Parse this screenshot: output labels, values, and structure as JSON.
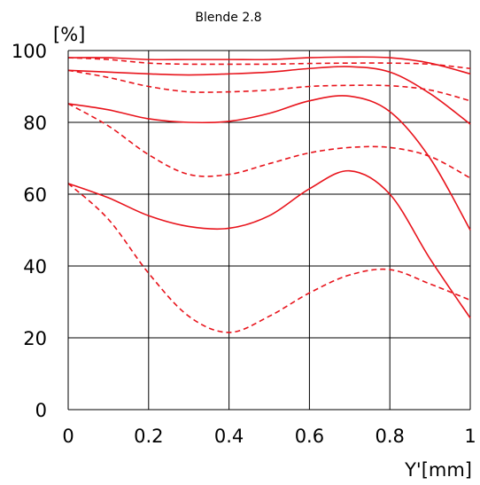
{
  "chart_data": {
    "type": "line",
    "title": "Blende 2.8",
    "ylabel": "[%]",
    "xlabel": "Y'[mm]",
    "xlim": [
      0,
      1
    ],
    "ylim": [
      0,
      100
    ],
    "xticks": [
      "0",
      "0.2",
      "0.4",
      "0.6",
      "0.8",
      "1"
    ],
    "yticks": [
      "0",
      "20",
      "40",
      "60",
      "80",
      "100"
    ],
    "grid": true,
    "line_color": "#e8141c",
    "series": [
      {
        "style": "solid",
        "x": [
          0,
          0.1,
          0.2,
          0.3,
          0.4,
          0.5,
          0.6,
          0.7,
          0.8,
          0.9,
          1.0
        ],
        "y": [
          98,
          98,
          97.5,
          97.5,
          97.5,
          97.5,
          98,
          98.2,
          98,
          96.5,
          93.5
        ]
      },
      {
        "style": "dashed",
        "x": [
          0,
          0.1,
          0.2,
          0.3,
          0.4,
          0.5,
          0.6,
          0.7,
          0.8,
          0.9,
          1.0
        ],
        "y": [
          98,
          97.5,
          96.5,
          96.2,
          96.2,
          96.2,
          96.4,
          96.5,
          96.5,
          96.2,
          95
        ]
      },
      {
        "style": "solid",
        "x": [
          0,
          0.1,
          0.2,
          0.3,
          0.4,
          0.5,
          0.6,
          0.7,
          0.8,
          0.9,
          1.0
        ],
        "y": [
          94.5,
          94,
          93.5,
          93.2,
          93.5,
          94,
          95,
          95.5,
          94,
          88,
          79.5
        ]
      },
      {
        "style": "dashed",
        "x": [
          0,
          0.1,
          0.2,
          0.3,
          0.4,
          0.5,
          0.6,
          0.7,
          0.8,
          0.9,
          1.0
        ],
        "y": [
          94.5,
          92.5,
          90,
          88.5,
          88.5,
          89,
          90,
          90.3,
          90.2,
          89,
          86
        ]
      },
      {
        "style": "solid",
        "x": [
          0,
          0.1,
          0.2,
          0.3,
          0.4,
          0.5,
          0.6,
          0.7,
          0.8,
          0.9,
          1.0
        ],
        "y": [
          85.2,
          83.5,
          81,
          80,
          80.3,
          82.5,
          86,
          87.3,
          83,
          70,
          50
        ]
      },
      {
        "style": "dashed",
        "x": [
          0,
          0.1,
          0.2,
          0.3,
          0.4,
          0.5,
          0.6,
          0.7,
          0.8,
          0.9,
          1.0
        ],
        "y": [
          85.2,
          79,
          71,
          65.5,
          65.5,
          68.5,
          71.5,
          73,
          73,
          70.5,
          64.5
        ]
      },
      {
        "style": "solid",
        "x": [
          0,
          0.1,
          0.2,
          0.3,
          0.4,
          0.5,
          0.6,
          0.7,
          0.8,
          0.9,
          1.0
        ],
        "y": [
          63,
          59,
          54,
          51,
          50.5,
          54,
          61.5,
          66.5,
          60,
          42,
          25.5
        ]
      },
      {
        "style": "dashed",
        "x": [
          0,
          0.1,
          0.2,
          0.3,
          0.4,
          0.5,
          0.6,
          0.7,
          0.8,
          0.9,
          1.0
        ],
        "y": [
          63,
          53,
          38,
          26,
          21.5,
          26,
          32.5,
          37.5,
          39,
          35,
          30.5
        ]
      }
    ]
  }
}
